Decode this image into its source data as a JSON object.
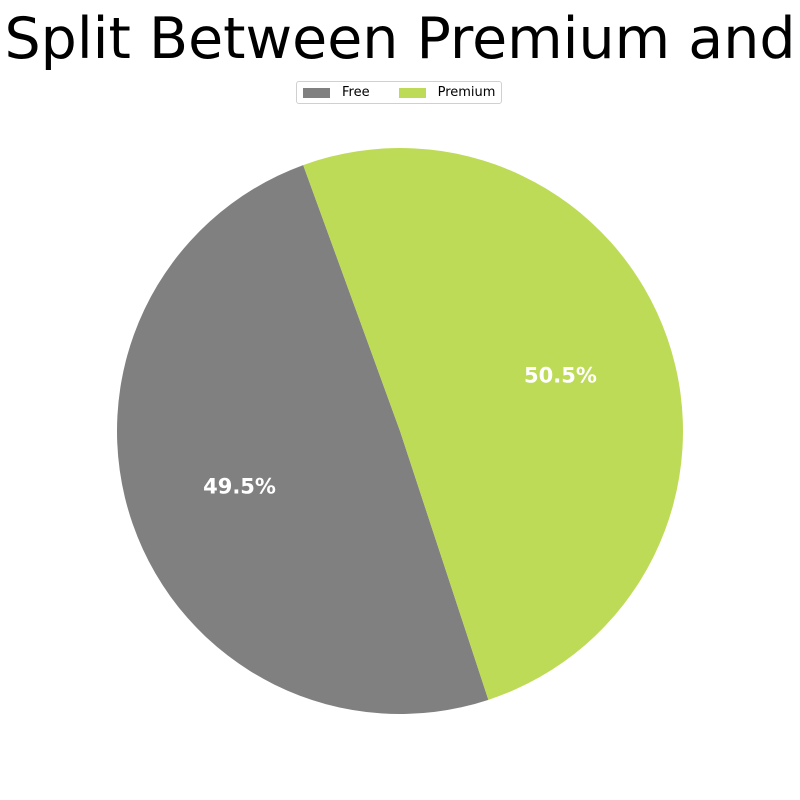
{
  "chart_data": {
    "type": "pie",
    "title": "Split Between Premium and",
    "legend_position": "top-center",
    "slices": [
      {
        "name": "Free",
        "value": 49.5,
        "label": "49.5%",
        "color": "#808080"
      },
      {
        "name": "Premium",
        "value": 50.5,
        "label": "50.5%",
        "color": "#bedb57"
      }
    ]
  }
}
